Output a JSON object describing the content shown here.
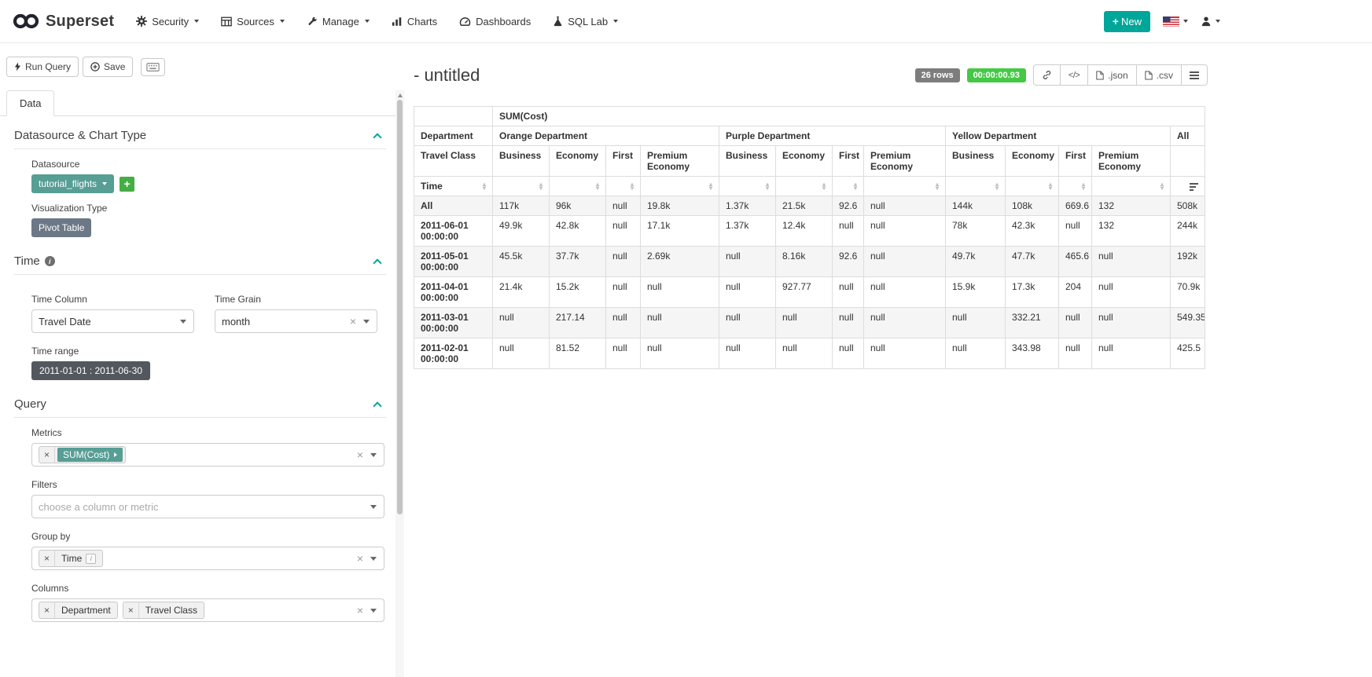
{
  "icons": {
    "sort_asc": "▴",
    "sort_desc": "▾",
    "close": "×",
    "info": "i",
    "plus": "+",
    "code": "</>"
  },
  "navbar": {
    "brand": "Superset",
    "items": [
      {
        "label": "Security"
      },
      {
        "label": "Sources"
      },
      {
        "label": "Manage"
      },
      {
        "label": "Charts"
      },
      {
        "label": "Dashboards"
      },
      {
        "label": "SQL Lab"
      }
    ],
    "new_button_label": "New"
  },
  "toolbar": {
    "run_query_label": "Run Query",
    "save_label": "Save"
  },
  "tabs": {
    "data_label": "Data"
  },
  "controls": {
    "datasource_section_title": "Datasource & Chart Type",
    "datasource_label": "Datasource",
    "datasource_value": "tutorial_flights",
    "viz_type_label": "Visualization Type",
    "viz_type_value": "Pivot Table",
    "time_section_title": "Time",
    "time_column_label": "Time Column",
    "time_column_value": "Travel Date",
    "time_grain_label": "Time Grain",
    "time_grain_value": "month",
    "time_range_label": "Time range",
    "time_range_value": "2011-01-01 : 2011-06-30",
    "query_section_title": "Query",
    "metrics_label": "Metrics",
    "metrics_value": "SUM(Cost)",
    "filters_label": "Filters",
    "filters_placeholder": "choose a column or metric",
    "groupby_label": "Group by",
    "groupby_value": "Time",
    "columns_label": "Columns",
    "columns_values": [
      "Department",
      "Travel Class"
    ]
  },
  "result": {
    "title": "- untitled",
    "rows_badge": "26 rows",
    "duration_badge": "00:00:00.93",
    "json_button": ".json",
    "csv_button": ".csv"
  },
  "colors": {
    "accent_teal": "#00a699",
    "chip_teal": "#579e95",
    "chip_slate": "#6d7886",
    "chip_dark": "#53575e",
    "badge_gray": "#7d7d7d",
    "badge_green": "#45c945",
    "edit_green": "#45ad45"
  },
  "pivot": {
    "metric_label": "SUM(Cost)",
    "department_label": "Department",
    "travel_class_label": "Travel Class",
    "time_label": "Time",
    "all_label": "All",
    "col_groups": [
      {
        "label": "Orange Department",
        "classes": [
          "Business",
          "Economy",
          "First",
          "Premium Economy"
        ]
      },
      {
        "label": "Purple Department",
        "classes": [
          "Business",
          "Economy",
          "First",
          "Premium Economy"
        ]
      },
      {
        "label": "Yellow Department",
        "classes": [
          "Business",
          "Economy",
          "First",
          "Premium Economy"
        ]
      }
    ],
    "rows": [
      {
        "time": "All",
        "values": [
          "117k",
          "96k",
          "null",
          "19.8k",
          "1.37k",
          "21.5k",
          "92.6",
          "null",
          "144k",
          "108k",
          "669.6",
          "132",
          "508k"
        ]
      },
      {
        "time": "2011-06-01 00:00:00",
        "values": [
          "49.9k",
          "42.8k",
          "null",
          "17.1k",
          "1.37k",
          "12.4k",
          "null",
          "null",
          "78k",
          "42.3k",
          "null",
          "132",
          "244k"
        ]
      },
      {
        "time": "2011-05-01 00:00:00",
        "values": [
          "45.5k",
          "37.7k",
          "null",
          "2.69k",
          "null",
          "8.16k",
          "92.6",
          "null",
          "49.7k",
          "47.7k",
          "465.6",
          "null",
          "192k"
        ]
      },
      {
        "time": "2011-04-01 00:00:00",
        "values": [
          "21.4k",
          "15.2k",
          "null",
          "null",
          "null",
          "927.77",
          "null",
          "null",
          "15.9k",
          "17.3k",
          "204",
          "null",
          "70.9k"
        ]
      },
      {
        "time": "2011-03-01 00:00:00",
        "values": [
          "null",
          "217.14",
          "null",
          "null",
          "null",
          "null",
          "null",
          "null",
          "null",
          "332.21",
          "null",
          "null",
          "549.35"
        ]
      },
      {
        "time": "2011-02-01 00:00:00",
        "values": [
          "null",
          "81.52",
          "null",
          "null",
          "null",
          "null",
          "null",
          "null",
          "null",
          "343.98",
          "null",
          "null",
          "425.5"
        ]
      }
    ]
  }
}
